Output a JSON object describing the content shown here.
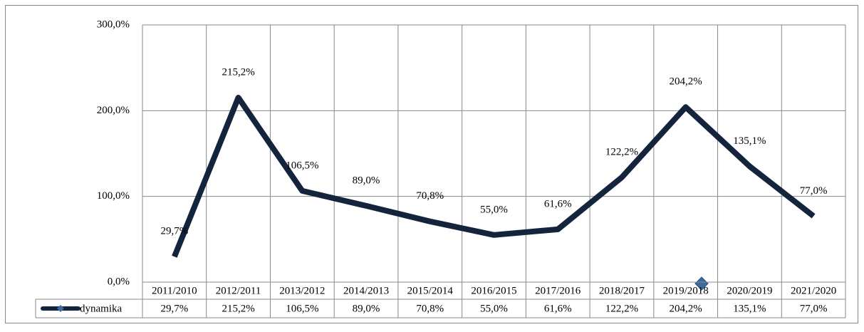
{
  "chart_data": {
    "type": "line",
    "categories": [
      "2011/2010",
      "2012/2011",
      "2013/2012",
      "2014/2013",
      "2015/2014",
      "2016/2015",
      "2017/2016",
      "2018/2017",
      "2019/2018",
      "2020/2019",
      "2021/2020"
    ],
    "series": [
      {
        "name": "dynamika",
        "color": "#15243d",
        "values": [
          29.7,
          215.2,
          106.5,
          89.0,
          70.8,
          55.0,
          61.6,
          122.2,
          204.2,
          135.1,
          77.0
        ],
        "value_labels": [
          "29,7%",
          "215,2%",
          "106,5%",
          "89,0%",
          "70,8%",
          "55,0%",
          "61,6%",
          "122,2%",
          "204,2%",
          "135,1%",
          "77,0%"
        ]
      }
    ],
    "ylim": [
      0,
      300
    ],
    "yticks": [
      {
        "value": 0,
        "label": "0,0%"
      },
      {
        "value": 100,
        "label": "100,0%"
      },
      {
        "value": 200,
        "label": "200,0%"
      },
      {
        "value": 300,
        "label": "300,0%"
      }
    ],
    "grid": true,
    "data_table": true
  }
}
